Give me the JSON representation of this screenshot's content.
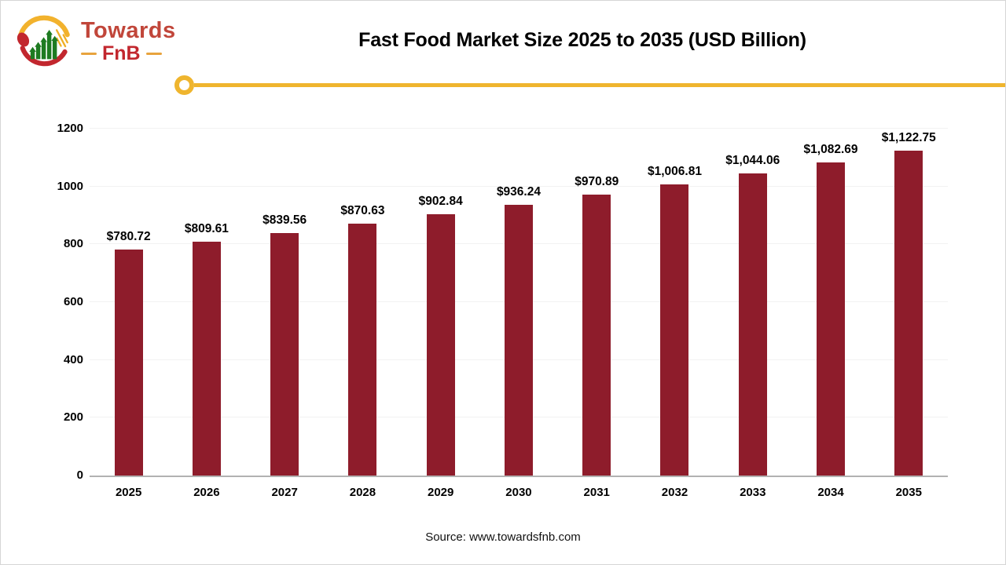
{
  "logo": {
    "name": "Towards",
    "sub": "FnB"
  },
  "title": "Fast Food Market Size 2025 to 2035 (USD Billion)",
  "source": "Source: www.towardsfnb.com",
  "colors": {
    "bar": "#8e1c2b",
    "accent_gold": "#efb52e",
    "logo_red": "#c1463a",
    "logo_crimson": "#c2272e",
    "logo_gold": "#e8a33d",
    "gridline": "#f2f2f2"
  },
  "chart_data": {
    "type": "bar",
    "title": "Fast Food Market Size 2025 to 2035 (USD Billion)",
    "categories": [
      "2025",
      "2026",
      "2027",
      "2028",
      "2029",
      "2030",
      "2031",
      "2032",
      "2033",
      "2034",
      "2035"
    ],
    "values": [
      780.72,
      809.61,
      839.56,
      870.63,
      902.84,
      936.24,
      970.89,
      1006.81,
      1044.06,
      1082.69,
      1122.75
    ],
    "labels": [
      "$780.72",
      "$809.61",
      "$839.56",
      "$870.63",
      "$902.84",
      "$936.24",
      "$970.89",
      "$1,006.81",
      "$1,044.06",
      "$1,082.69",
      "$1,122.75"
    ],
    "xlabel": "",
    "ylabel": "",
    "ylim": [
      0,
      1200
    ],
    "yticks": [
      0,
      200,
      400,
      600,
      800,
      1000,
      1200
    ],
    "grid": true,
    "legend": false,
    "bar_color": "#8e1c2b"
  }
}
